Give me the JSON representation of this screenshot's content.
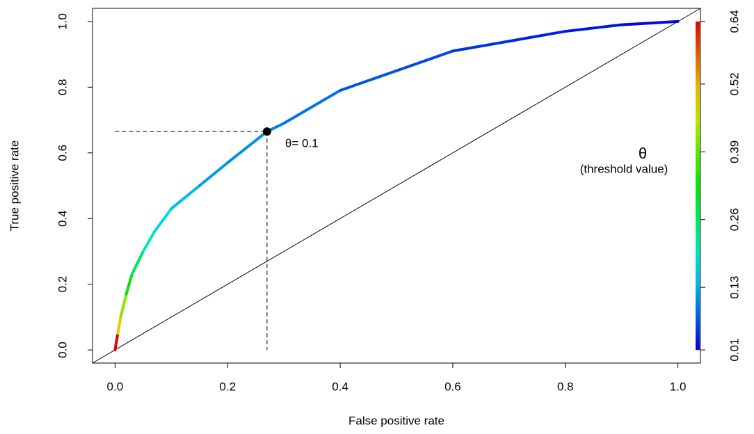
{
  "chart_data": {
    "type": "line",
    "xlabel": "False positive rate",
    "ylabel": "True positive rate",
    "x": [
      0,
      0.005,
      0.01,
      0.02,
      0.03,
      0.05,
      0.07,
      0.1,
      0.15,
      0.2,
      0.27,
      0.3,
      0.4,
      0.5,
      0.6,
      0.7,
      0.8,
      0.9,
      1.0
    ],
    "series": [
      {
        "values": [
          0,
          0.05,
          0.1,
          0.17,
          0.23,
          0.3,
          0.36,
          0.43,
          0.5,
          0.57,
          0.665,
          0.69,
          0.79,
          0.85,
          0.91,
          0.94,
          0.97,
          0.99,
          1.0
        ],
        "thresholds": [
          0.64,
          0.5,
          0.42,
          0.32,
          0.26,
          0.2,
          0.16,
          0.14,
          0.12,
          0.11,
          0.1,
          0.09,
          0.07,
          0.06,
          0.045,
          0.035,
          0.025,
          0.015,
          0.01
        ]
      }
    ],
    "xlim": [
      -0.04,
      1.04
    ],
    "ylim": [
      -0.04,
      1.04
    ],
    "xticks": [
      {
        "value": 0,
        "label": "0.0"
      },
      0.2,
      0.4,
      0.6,
      0.8,
      {
        "value": 1,
        "label": "1.0"
      }
    ],
    "yticks": [
      {
        "value": 0,
        "label": "0.0"
      },
      0.2,
      0.4,
      0.6,
      0.8,
      {
        "value": 1,
        "label": "1.0"
      }
    ],
    "diagonal": true,
    "point": {
      "x": 0.27,
      "y": 0.665,
      "label": "θ= 0.1"
    },
    "colorbar": {
      "title": "θ",
      "subtitle": "(threshold value)",
      "lim": [
        0.01,
        0.64
      ],
      "ticks": [
        0.01,
        0.13,
        0.26,
        0.39,
        0.52,
        0.64
      ]
    }
  }
}
